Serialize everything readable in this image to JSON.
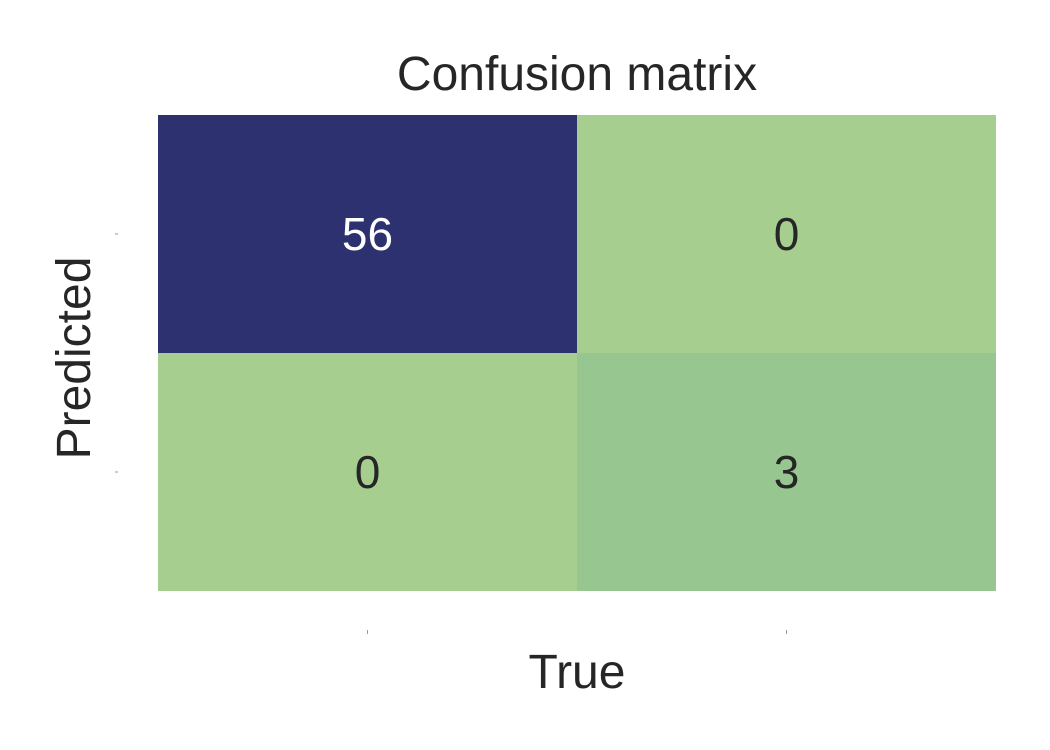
{
  "chart_data": {
    "type": "heatmap",
    "title": "Confusion matrix",
    "xlabel": "True",
    "ylabel": "Predicted",
    "matrix": [
      [
        56,
        0
      ],
      [
        0,
        3
      ]
    ],
    "cell_colors": [
      [
        "#2d3170",
        "#a6ce8f"
      ],
      [
        "#a6ce8f",
        "#97c690"
      ]
    ],
    "label_colors": [
      [
        "#ffffff",
        "#262626"
      ],
      [
        "#262626",
        "#262626"
      ]
    ],
    "colorbar": false,
    "grid": false
  }
}
